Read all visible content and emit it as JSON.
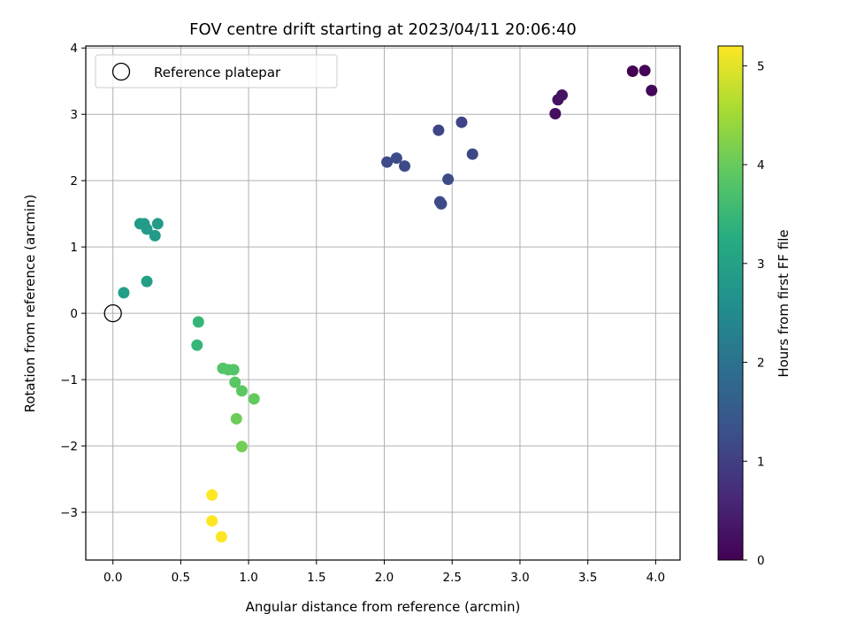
{
  "chart_data": {
    "type": "scatter",
    "title": "FOV centre drift starting at 2023/04/11 20:06:40",
    "xlabel": "Angular distance from reference (arcmin)",
    "ylabel": "Rotation from reference (arcmin)",
    "xlim": [
      -0.2,
      4.18
    ],
    "ylim": [
      -3.72,
      4.03
    ],
    "xticks": [
      0.0,
      0.5,
      1.0,
      1.5,
      2.0,
      2.5,
      3.0,
      3.5,
      4.0
    ],
    "xtick_labels": [
      "0.0",
      "0.5",
      "1.0",
      "1.5",
      "2.0",
      "2.5",
      "3.0",
      "3.5",
      "4.0"
    ],
    "yticks": [
      -3,
      -2,
      -1,
      0,
      1,
      2,
      3,
      4
    ],
    "ytick_labels": [
      "−3",
      "−2",
      "−1",
      "0",
      "1",
      "2",
      "3",
      "4"
    ],
    "grid": true,
    "colormap": "viridis",
    "colorbar": {
      "label": "Hours from first FF file",
      "range": [
        0,
        5.2
      ],
      "ticks": [
        0,
        1,
        2,
        3,
        4,
        5
      ],
      "tick_labels": [
        "0",
        "1",
        "2",
        "3",
        "4",
        "5"
      ]
    },
    "legend": {
      "placement": "top-left",
      "entries": [
        "Reference platepar"
      ]
    },
    "reference_point": {
      "x": 0.0,
      "y": 0.0
    },
    "points": [
      {
        "x": 3.83,
        "y": 3.65,
        "hours": 0.0
      },
      {
        "x": 3.92,
        "y": 3.66,
        "hours": 0.05
      },
      {
        "x": 3.97,
        "y": 3.36,
        "hours": 0.1
      },
      {
        "x": 3.26,
        "y": 3.01,
        "hours": 0.2
      },
      {
        "x": 3.28,
        "y": 3.22,
        "hours": 0.25
      },
      {
        "x": 3.31,
        "y": 3.29,
        "hours": 0.3
      },
      {
        "x": 2.57,
        "y": 2.88,
        "hours": 1.1
      },
      {
        "x": 2.4,
        "y": 2.76,
        "hours": 1.1
      },
      {
        "x": 2.65,
        "y": 2.4,
        "hours": 1.15
      },
      {
        "x": 2.02,
        "y": 2.28,
        "hours": 1.2
      },
      {
        "x": 2.09,
        "y": 2.34,
        "hours": 1.2
      },
      {
        "x": 2.15,
        "y": 2.22,
        "hours": 1.2
      },
      {
        "x": 2.47,
        "y": 2.02,
        "hours": 1.2
      },
      {
        "x": 2.41,
        "y": 1.68,
        "hours": 1.2
      },
      {
        "x": 2.42,
        "y": 1.65,
        "hours": 1.2
      },
      {
        "x": 0.2,
        "y": 1.35,
        "hours": 2.85
      },
      {
        "x": 0.23,
        "y": 1.35,
        "hours": 2.85
      },
      {
        "x": 0.25,
        "y": 1.27,
        "hours": 2.85
      },
      {
        "x": 0.33,
        "y": 1.35,
        "hours": 2.85
      },
      {
        "x": 0.31,
        "y": 1.17,
        "hours": 2.85
      },
      {
        "x": 0.08,
        "y": 0.31,
        "hours": 2.95
      },
      {
        "x": 0.25,
        "y": 0.48,
        "hours": 2.95
      },
      {
        "x": 0.63,
        "y": -0.13,
        "hours": 3.45
      },
      {
        "x": 0.62,
        "y": -0.48,
        "hours": 3.45
      },
      {
        "x": 0.81,
        "y": -0.83,
        "hours": 3.8
      },
      {
        "x": 0.85,
        "y": -0.85,
        "hours": 3.8
      },
      {
        "x": 0.89,
        "y": -0.85,
        "hours": 3.8
      },
      {
        "x": 0.9,
        "y": -1.04,
        "hours": 3.85
      },
      {
        "x": 0.95,
        "y": -1.17,
        "hours": 3.9
      },
      {
        "x": 1.04,
        "y": -1.29,
        "hours": 3.95
      },
      {
        "x": 0.91,
        "y": -1.59,
        "hours": 4.05
      },
      {
        "x": 0.95,
        "y": -2.01,
        "hours": 4.1
      },
      {
        "x": 0.73,
        "y": -2.74,
        "hours": 5.2
      },
      {
        "x": 0.73,
        "y": -3.13,
        "hours": 5.2
      },
      {
        "x": 0.8,
        "y": -3.37,
        "hours": 5.2
      }
    ]
  }
}
